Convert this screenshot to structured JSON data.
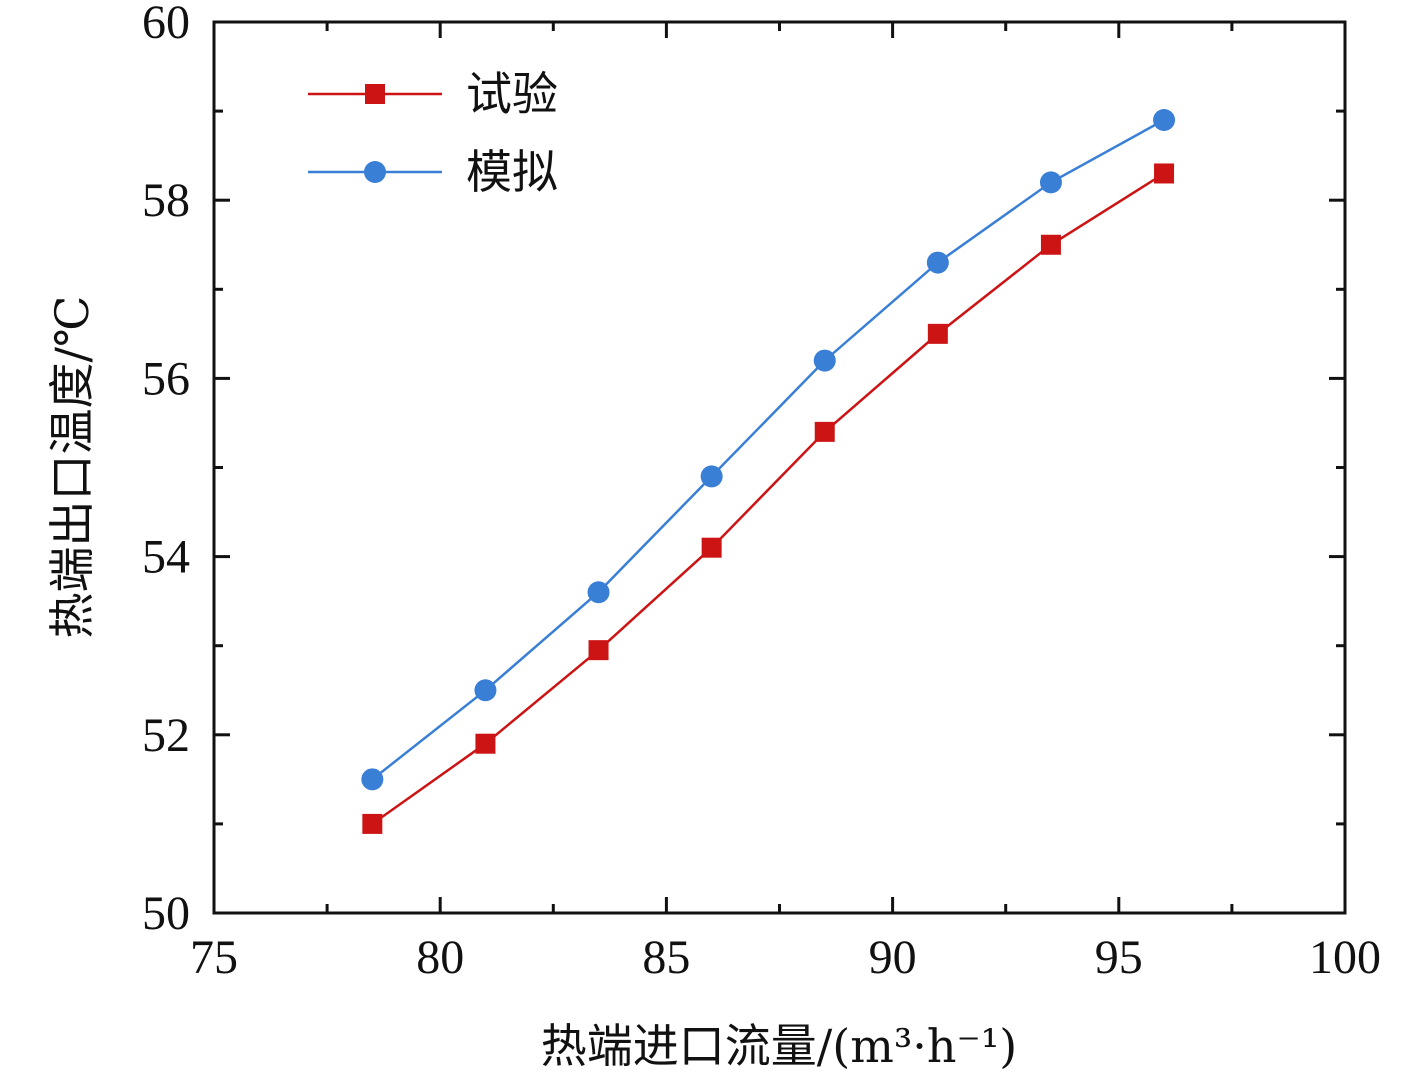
{
  "chart_data": {
    "type": "line",
    "xlabel": "热端进口流量/(m³·h⁻¹)",
    "ylabel": "热端出口温度/℃",
    "xlim": [
      75,
      100
    ],
    "ylim": [
      50,
      60
    ],
    "x_ticks": [
      75,
      80,
      85,
      90,
      95,
      100
    ],
    "y_ticks": [
      50,
      52,
      54,
      56,
      58,
      60
    ],
    "x_tick_labels": [
      "75",
      "80",
      "85",
      "90",
      "95",
      "100"
    ],
    "y_tick_labels": [
      "50",
      "52",
      "54",
      "56",
      "58",
      "60"
    ],
    "grid": false,
    "legend_position": "top-left",
    "x": [
      78.5,
      81,
      83.5,
      86,
      88.5,
      91,
      93.5,
      96
    ],
    "series": [
      {
        "name": "试验",
        "color": "#cc1414",
        "marker": "square",
        "values": [
          51.0,
          51.9,
          52.95,
          54.1,
          55.4,
          56.5,
          57.5,
          58.3
        ]
      },
      {
        "name": "模拟",
        "color": "#3a7fd6",
        "marker": "circle",
        "values": [
          51.5,
          52.5,
          53.6,
          54.9,
          56.2,
          57.3,
          58.2,
          58.9
        ]
      }
    ]
  }
}
